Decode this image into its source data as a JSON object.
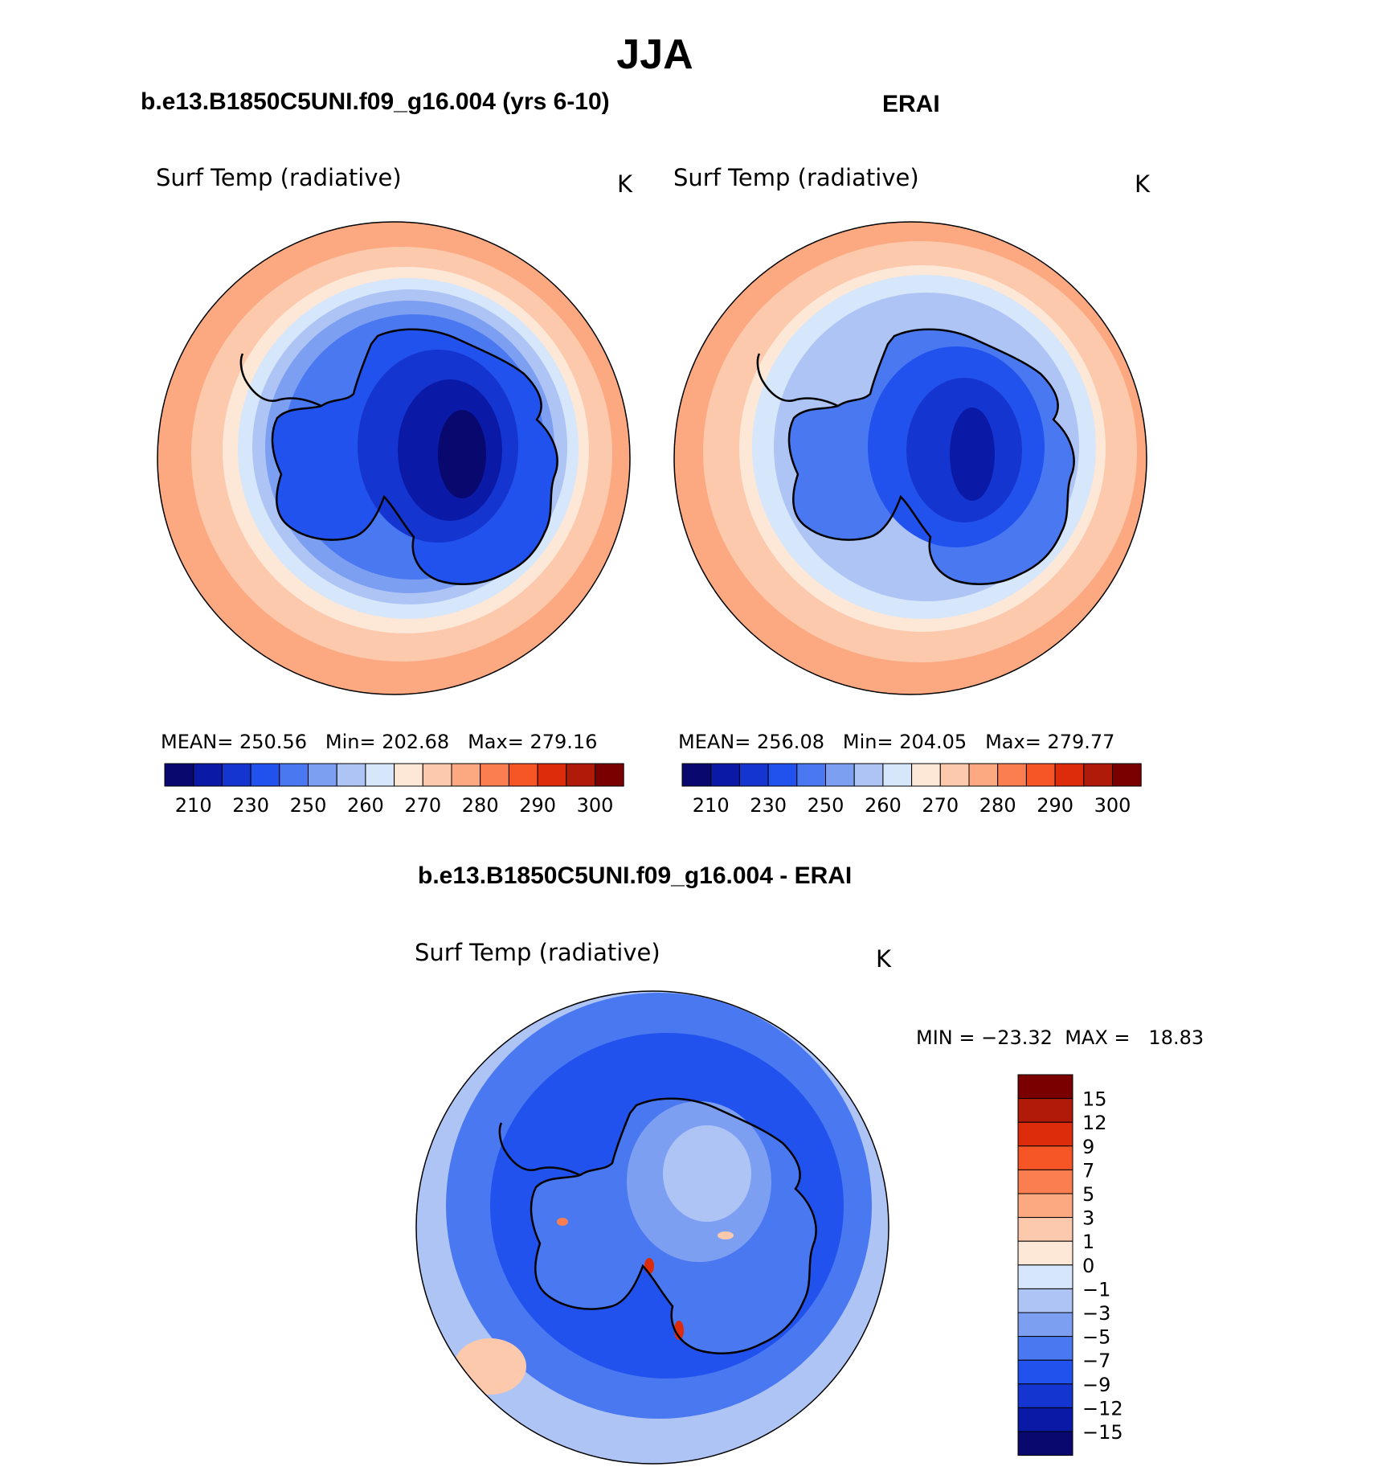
{
  "page": {
    "title": "JJA"
  },
  "panels": [
    {
      "header": "b.e13.B1850C5UNI.f09_g16.004 (yrs 6-10)",
      "variable_label": "Surf Temp (radiative)",
      "units": "K",
      "stats": {
        "mean_label": "MEAN=",
        "mean": "250.56",
        "min_label": "Min=",
        "min": "202.68",
        "max_label": "Max=",
        "max": "279.16"
      },
      "colorbar": {
        "colors": [
          "#08086e",
          "#0a1aa6",
          "#1535d0",
          "#2252ee",
          "#4a78f0",
          "#7d9ff2",
          "#aec4f5",
          "#d6e6fb",
          "#fde7d6",
          "#fcc9ad",
          "#fca982",
          "#fb7e50",
          "#f65526",
          "#dc2c0b",
          "#b01a08",
          "#7a0000"
        ],
        "ticks": [
          "210",
          "230",
          "250",
          "260",
          "270",
          "280",
          "290",
          "300"
        ]
      }
    },
    {
      "header": "ERAI",
      "variable_label": "Surf Temp (radiative)",
      "units": "K",
      "stats": {
        "mean_label": "MEAN=",
        "mean": "256.08",
        "min_label": "Min=",
        "min": "204.05",
        "max_label": "Max=",
        "max": "279.77"
      },
      "colorbar": {
        "colors": [
          "#08086e",
          "#0a1aa6",
          "#1535d0",
          "#2252ee",
          "#4a78f0",
          "#7d9ff2",
          "#aec4f5",
          "#d6e6fb",
          "#fde7d6",
          "#fcc9ad",
          "#fca982",
          "#fb7e50",
          "#f65526",
          "#dc2c0b",
          "#b01a08",
          "#7a0000"
        ],
        "ticks": [
          "210",
          "230",
          "250",
          "260",
          "270",
          "280",
          "290",
          "300"
        ]
      }
    }
  ],
  "diff": {
    "header": "b.e13.B1850C5UNI.f09_g16.004 - ERAI",
    "variable_label": "Surf Temp (radiative)",
    "units": "K",
    "minmax": {
      "min_label": "MIN =",
      "min": "−23.32",
      "max_label": "MAX =",
      "max": "18.83"
    },
    "colorbar": {
      "colors": [
        "#7a0000",
        "#b01a08",
        "#dc2c0b",
        "#f65526",
        "#fb7e50",
        "#fca982",
        "#fcc9ad",
        "#fde7d6",
        "#d6e6fb",
        "#aec4f5",
        "#7d9ff2",
        "#4a78f0",
        "#2252ee",
        "#1535d0",
        "#0a1aa6",
        "#08086e"
      ],
      "ticks": [
        "15",
        "12",
        "9",
        "7",
        "5",
        "3",
        "1",
        "0",
        "−1",
        "−3",
        "−5",
        "−7",
        "−9",
        "−12",
        "−15"
      ]
    }
  }
}
